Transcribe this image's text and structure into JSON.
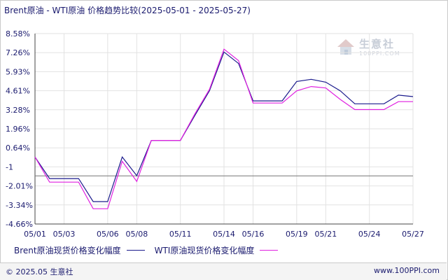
{
  "title": "Brent原油 - WTI原油 价格趋势比较(2025-05-01 - 2025-05-27)",
  "watermark": {
    "brand": "生意社",
    "url": "100PPI.COM"
  },
  "footer": {
    "copyright": "© 2025.05 生意社",
    "site": "www.100PPI.com"
  },
  "colors": {
    "brent": "#1a1a8c",
    "wti": "#e020e0",
    "grid": "#e2e2e2",
    "axis": "#444444",
    "text": "#1a1a6e"
  },
  "chart_data": {
    "type": "line",
    "title": "Brent原油 - WTI原油 价格趋势比较(2025-05-01 - 2025-05-27)",
    "xlabel": "",
    "ylabel": "",
    "x": [
      "05/01",
      "05/02",
      "05/03",
      "05/04",
      "05/05",
      "05/06",
      "05/07",
      "05/08",
      "05/09",
      "05/10",
      "05/11",
      "05/12",
      "05/13",
      "05/14",
      "05/15",
      "05/16",
      "05/17",
      "05/18",
      "05/19",
      "05/20",
      "05/21",
      "05/22",
      "05/23",
      "05/24",
      "05/25",
      "05/26",
      "05/27"
    ],
    "x_tick_labels": [
      "05/01",
      "05/03",
      "05/06",
      "05/08",
      "05/11",
      "05/14",
      "05/16",
      "05/19",
      "05/21",
      "05/24",
      "05/27"
    ],
    "y_tick_labels": [
      "8.58%",
      "7.26%",
      "5.93%",
      "4.61%",
      "3.28%",
      "1.96%",
      "0.64%",
      "-1",
      "-2.01%",
      "-3.34%",
      "-4.66%"
    ],
    "ylim": [
      -4.66,
      8.58
    ],
    "grid": true,
    "legend_position": "bottom",
    "series": [
      {
        "name": "Brent原油现货价格变化幅度",
        "values": [
          0.0,
          -1.5,
          -1.5,
          -1.5,
          -3.1,
          -3.1,
          0.0,
          -1.3,
          1.15,
          1.15,
          1.15,
          2.9,
          4.6,
          7.3,
          6.5,
          3.9,
          3.9,
          3.9,
          5.25,
          5.4,
          5.2,
          4.6,
          3.7,
          3.7,
          3.7,
          4.3,
          4.2
        ]
      },
      {
        "name": "WTI原油现货价格变化幅度",
        "values": [
          0.0,
          -1.75,
          -1.75,
          -1.75,
          -3.6,
          -3.6,
          -0.3,
          -1.7,
          1.15,
          1.15,
          1.15,
          3.0,
          4.7,
          7.5,
          6.7,
          3.75,
          3.75,
          3.75,
          4.6,
          4.9,
          4.8,
          4.0,
          3.3,
          3.3,
          3.3,
          3.85,
          3.85
        ]
      }
    ]
  }
}
